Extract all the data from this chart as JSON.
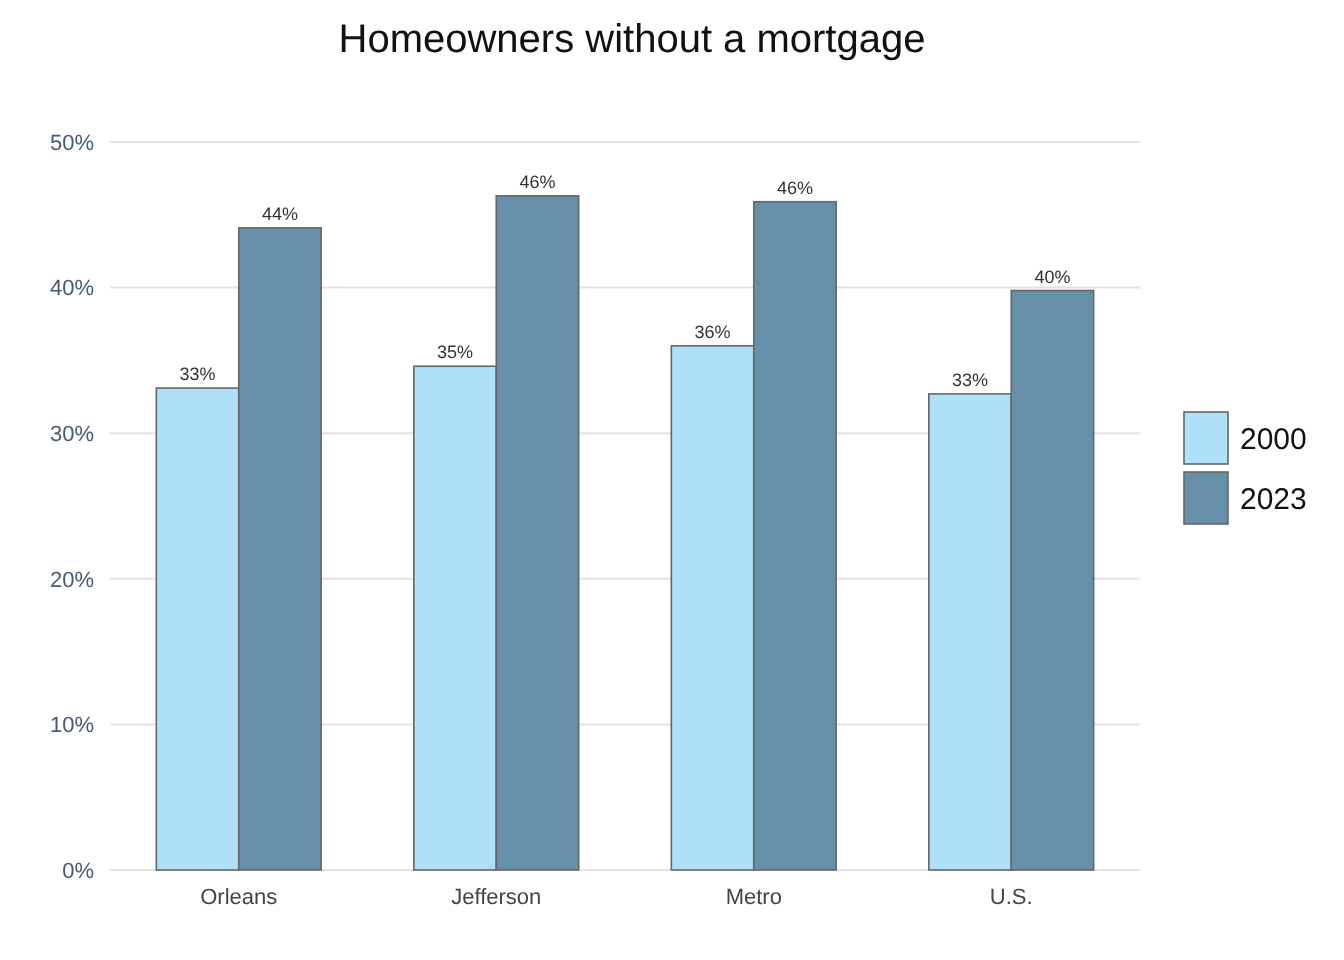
{
  "chart_data": {
    "type": "bar",
    "title": "Homeowners without a mortgage",
    "categories": [
      "Orleans",
      "Jefferson",
      "Metro",
      "U.S."
    ],
    "series": [
      {
        "name": "2000",
        "color": "#aee0fa",
        "values": [
          33.1,
          34.6,
          36.0,
          32.7
        ],
        "value_labels": [
          "33%",
          "35%",
          "36%",
          "33%"
        ]
      },
      {
        "name": "2023",
        "color": "#6690aa",
        "values": [
          44.1,
          46.3,
          45.9,
          39.8
        ],
        "value_labels": [
          "44%",
          "46%",
          "46%",
          "40%"
        ]
      }
    ],
    "ylim": [
      0,
      50
    ],
    "yticks": [
      {
        "value": 0,
        "label": "0%"
      },
      {
        "value": 10,
        "label": "10%"
      },
      {
        "value": 20,
        "label": "20%"
      },
      {
        "value": 30,
        "label": "30%"
      },
      {
        "value": 40,
        "label": "40%"
      },
      {
        "value": 50,
        "label": "50%"
      }
    ],
    "grid": "y",
    "legend": "right"
  }
}
